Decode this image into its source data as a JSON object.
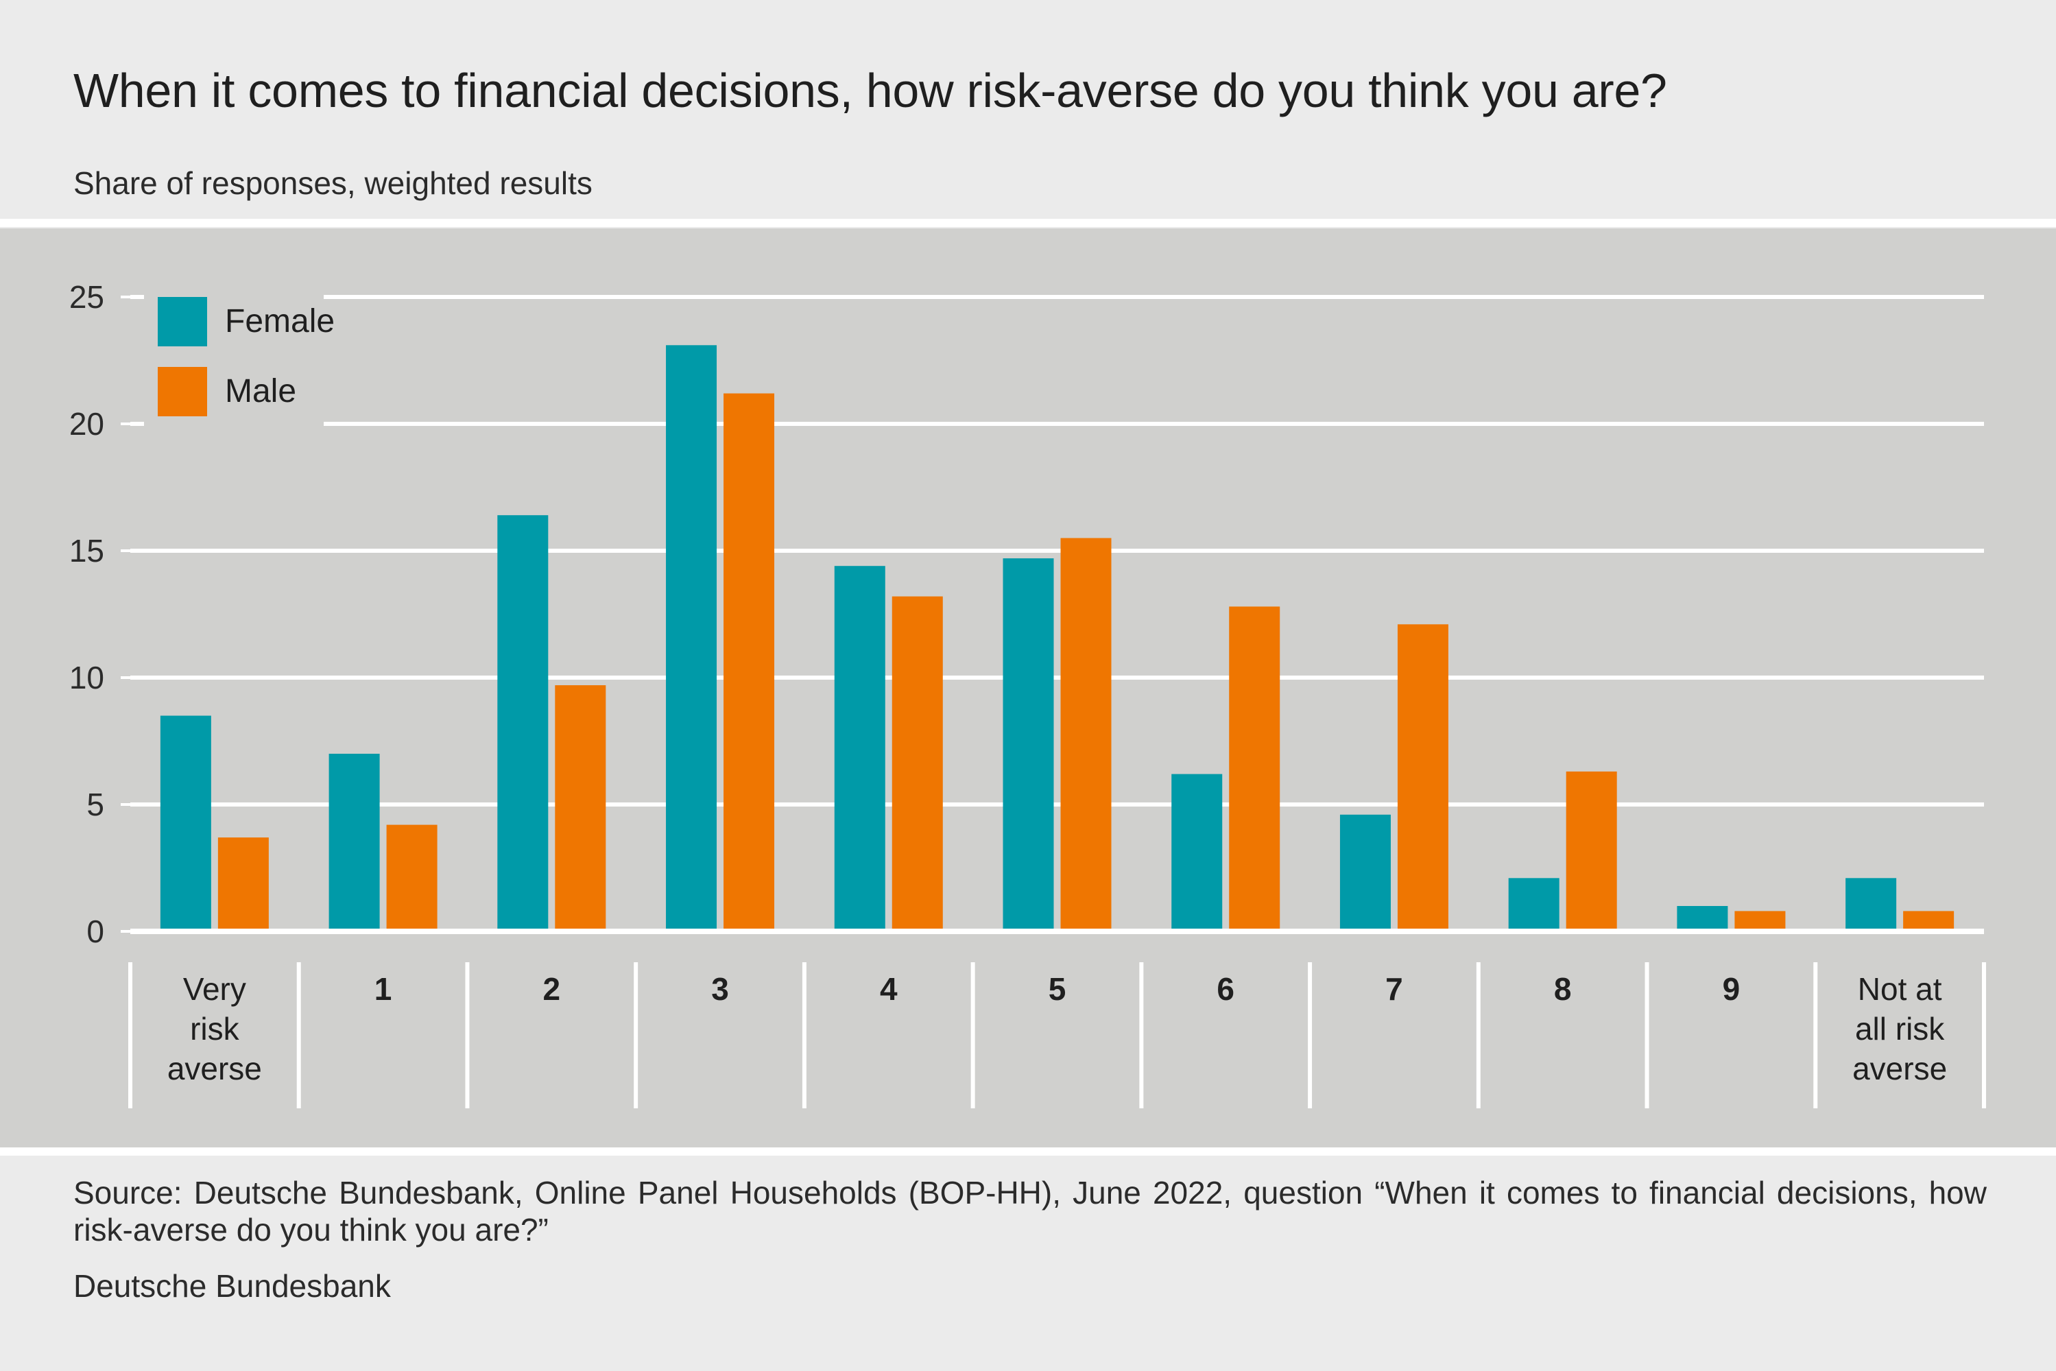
{
  "header": {
    "title": "When it comes to financial decisions, how risk-averse do you think you are?",
    "subtitle": "Share of responses, weighted results"
  },
  "footer": {
    "source": "Source: Deutsche Bundesbank, Online Panel Households (BOP-HH), June 2022, question “When it comes to financial decisions, how risk-averse do you think you are?”",
    "organization": "Deutsche Bundesbank"
  },
  "colors": {
    "female": "#009aa8",
    "male": "#ef7601",
    "panel": "#d0d0ce",
    "gridline": "#ffffff",
    "text": "#1f1f1f"
  },
  "chart_data": {
    "type": "bar",
    "title": "When it comes to financial decisions, how risk-averse do you think you are?",
    "subtitle": "Share of responses, weighted results",
    "xlabel": "",
    "ylabel": "",
    "ylim": [
      0,
      25
    ],
    "yticks": [
      0,
      5,
      10,
      15,
      20,
      25
    ],
    "grid": true,
    "legend_position": "top-left",
    "categories": [
      [
        "Very",
        "risk",
        "averse"
      ],
      [
        "1"
      ],
      [
        "2"
      ],
      [
        "3"
      ],
      [
        "4"
      ],
      [
        "5"
      ],
      [
        "6"
      ],
      [
        "7"
      ],
      [
        "8"
      ],
      [
        "9"
      ],
      [
        "Not at",
        "all risk",
        "averse"
      ]
    ],
    "series": [
      {
        "name": "Female",
        "color": "#009aa8",
        "values": [
          8.5,
          7.0,
          16.4,
          23.1,
          14.4,
          14.7,
          6.2,
          4.6,
          2.1,
          1.0,
          2.1
        ]
      },
      {
        "name": "Male",
        "color": "#ef7601",
        "values": [
          3.7,
          4.2,
          9.7,
          21.2,
          13.2,
          15.5,
          12.8,
          12.1,
          6.3,
          0.8,
          0.8
        ]
      }
    ]
  }
}
